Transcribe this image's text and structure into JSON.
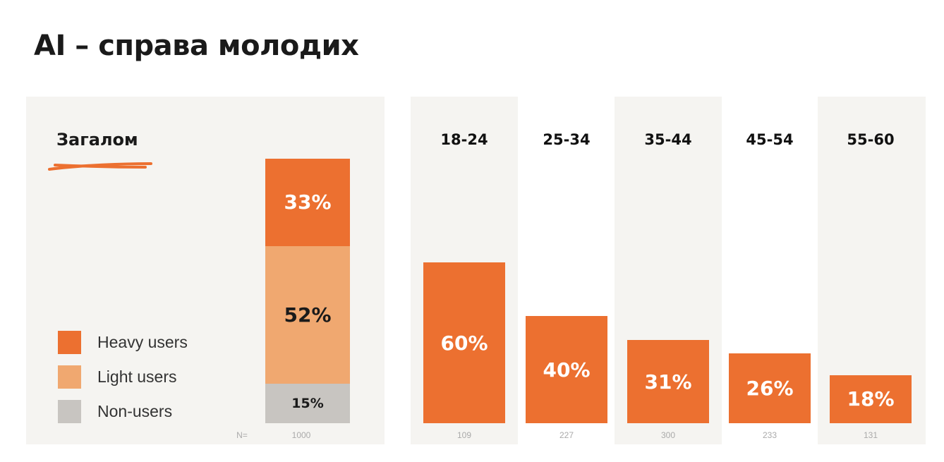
{
  "title": "AI – справа молодих",
  "colors": {
    "heavy": "#ec7030",
    "light": "#f0a870",
    "non": "#c8c5c1",
    "panel": "#f5f4f1"
  },
  "chart_data": [
    {
      "type": "bar",
      "subtitle": "Загалом",
      "stacked": true,
      "categories": [
        "Загалом"
      ],
      "series": [
        {
          "name": "Heavy users",
          "values": [
            33
          ],
          "label": "33%"
        },
        {
          "name": "Light users",
          "values": [
            52
          ],
          "label": "52%"
        },
        {
          "name": "Non-users",
          "values": [
            15
          ],
          "label": "15%"
        }
      ],
      "n_label": "N=",
      "n": "1000",
      "ylim": [
        0,
        100
      ],
      "legend": "bottom-left"
    },
    {
      "type": "bar",
      "categories": [
        "18-24",
        "25-34",
        "35-44",
        "45-54",
        "55-60"
      ],
      "series": [
        {
          "name": "Heavy users",
          "values": [
            60,
            40,
            31,
            26,
            18
          ]
        }
      ],
      "labels": [
        "60%",
        "40%",
        "31%",
        "26%",
        "18%"
      ],
      "n": [
        "109",
        "227",
        "300",
        "233",
        "131"
      ],
      "ylim": [
        0,
        100
      ]
    }
  ]
}
